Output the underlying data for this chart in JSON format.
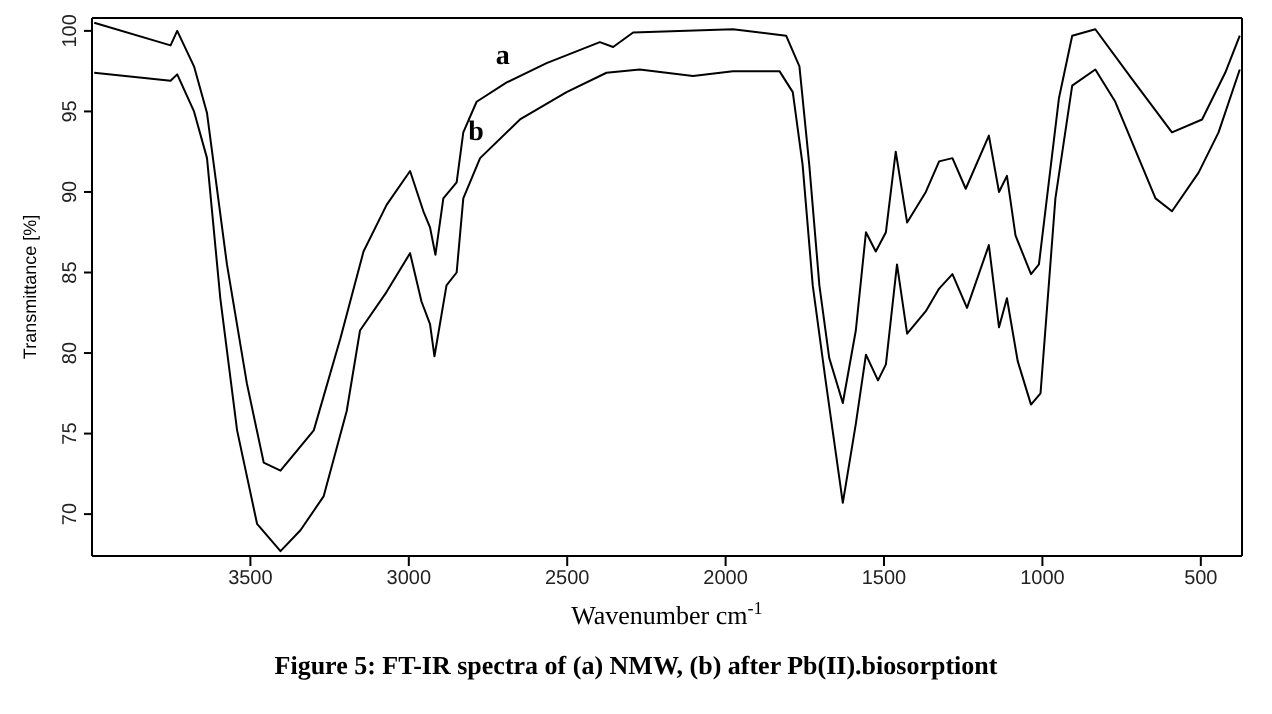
{
  "chart_data": {
    "type": "line",
    "title": "Figure 5: FT-IR spectra of (a) NMW, (b) after Pb(II).biosorptiont",
    "xlabel": "Wavenumber cm$^{-1}$",
    "ylabel": "Transmittance [%]",
    "xlim": [
      4000,
      370
    ],
    "xticks": [
      3500,
      3000,
      2500,
      2000,
      1500,
      1000,
      500
    ],
    "ylim": [
      67.4,
      100.8
    ],
    "yticks": [
      70,
      75,
      80,
      85,
      90,
      95,
      100
    ],
    "legend": false,
    "marker": "none",
    "line_style": "solid",
    "series": [
      {
        "name": "a",
        "color": "#000000",
        "x": [
          3993,
          3752,
          3731,
          3678,
          3637,
          3574,
          3511,
          3458,
          3405,
          3300,
          3216,
          3143,
          3070,
          2996,
          2954,
          2933,
          2916,
          2891,
          2849,
          2828,
          2786,
          2691,
          2565,
          2397,
          2355,
          2292,
          1977,
          1809,
          1767,
          1736,
          1704,
          1673,
          1630,
          1589,
          1557,
          1526,
          1494,
          1463,
          1427,
          1368,
          1326,
          1284,
          1242,
          1169,
          1137,
          1112,
          1085,
          1036,
          1011,
          948,
          906,
          833,
          717,
          591,
          496,
          423,
          377
        ],
        "values": [
          100.5,
          99.1,
          100,
          97.8,
          94.9,
          85.5,
          78.1,
          73.2,
          72.7,
          75.2,
          80.9,
          86.3,
          89.2,
          91.3,
          88.8,
          87.8,
          86.1,
          89.6,
          90.6,
          93.7,
          95.6,
          96.8,
          98,
          99.3,
          99,
          99.9,
          100.1,
          99.7,
          97.8,
          91.7,
          84.2,
          79.7,
          76.9,
          81.4,
          87.5,
          86.3,
          87.5,
          92.5,
          88.1,
          90,
          91.9,
          92.1,
          90.2,
          93.5,
          90,
          91,
          87.3,
          84.9,
          85.5,
          95.8,
          99.7,
          100.1,
          97,
          93.7,
          94.5,
          97.4,
          99.7
        ]
      },
      {
        "name": "b",
        "color": "#000000",
        "x": [
          3993,
          3752,
          3731,
          3678,
          3637,
          3595,
          3542,
          3479,
          3405,
          3342,
          3269,
          3196,
          3154,
          3070,
          2996,
          2960,
          2933,
          2919,
          2881,
          2849,
          2828,
          2775,
          2649,
          2502,
          2376,
          2271,
          2103,
          1977,
          1830,
          1788,
          1757,
          1725,
          1683,
          1630,
          1589,
          1557,
          1519,
          1494,
          1459,
          1427,
          1368,
          1326,
          1284,
          1238,
          1169,
          1137,
          1112,
          1078,
          1036,
          1006,
          959,
          906,
          833,
          770,
          696,
          643,
          591,
          507,
          444,
          377
        ],
        "values": [
          97.4,
          96.9,
          97.3,
          95,
          92.1,
          83.4,
          75.2,
          69.4,
          67.7,
          69,
          71.1,
          76.4,
          81.4,
          83.8,
          86.2,
          83.2,
          81.8,
          79.8,
          84.2,
          85,
          89.6,
          92.1,
          94.5,
          96.2,
          97.4,
          97.6,
          97.2,
          97.5,
          97.5,
          96.2,
          91.7,
          84.2,
          78.1,
          70.7,
          75.6,
          79.9,
          78.3,
          79.3,
          85.5,
          81.2,
          82.6,
          84,
          84.9,
          82.8,
          86.7,
          81.6,
          83.4,
          79.5,
          76.8,
          77.5,
          89.6,
          96.6,
          97.6,
          95.6,
          92.1,
          89.6,
          88.8,
          91.2,
          93.7,
          97.6
        ]
      }
    ]
  }
}
